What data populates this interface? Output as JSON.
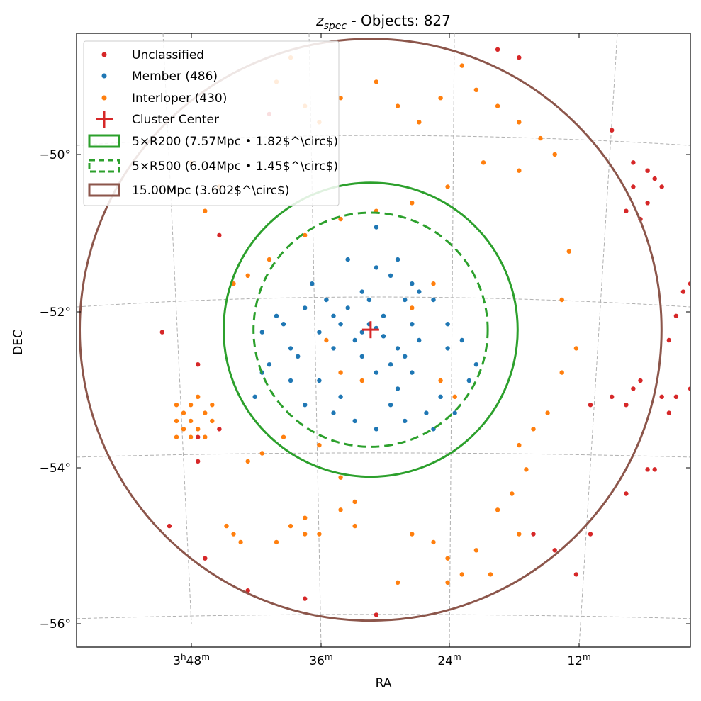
{
  "title": {
    "main": "z",
    "sub": "spec",
    "rest": " - Objects: 827"
  },
  "xlabel": "RA",
  "ylabel": "DEC",
  "colors": {
    "unclassified": "#d62728",
    "member": "#1f77b4",
    "interloper": "#ff7f0e",
    "center": "#d62728",
    "r200": "#2ca02c",
    "r500": "#2ca02c",
    "r15": "#8c564b",
    "grid": "#b0b0b0"
  },
  "legend": [
    {
      "key": "unclassified",
      "label": "Unclassified",
      "marker": "dot"
    },
    {
      "key": "member",
      "label": "Member (486)",
      "marker": "dot"
    },
    {
      "key": "interloper",
      "label": "Interloper (430)",
      "marker": "dot"
    },
    {
      "key": "center",
      "label": "Cluster Center",
      "marker": "plus"
    },
    {
      "key": "r200",
      "label": "5×R200 (7.57Mpc • 1.82$^\\circ$)",
      "marker": "solid-rect"
    },
    {
      "key": "r500",
      "label": "5×R500 (6.04Mpc • 1.45$^\\circ$)",
      "marker": "dashed-rect"
    },
    {
      "key": "r15",
      "label": "15.00Mpc (3.602$^\\circ$)",
      "marker": "solid-rect"
    }
  ],
  "y_ticks": [
    "−50°",
    "−52°",
    "−54°",
    "−56°"
  ],
  "x_ticks": [
    {
      "main": "3",
      "sup1": "h",
      "mid": "48",
      "sup2": "m"
    },
    {
      "main": "36",
      "sup1": "m"
    },
    {
      "main": "24",
      "sup1": "m"
    },
    {
      "main": "12",
      "sup1": "m"
    }
  ],
  "chart_data": {
    "type": "scatter",
    "title": "z_spec - Objects: 827",
    "xlabel": "RA",
    "ylabel": "DEC",
    "xlim_hours": [
      3.92,
      3.06
    ],
    "ylim_deg": [
      -56.3,
      -48.7
    ],
    "grid": true,
    "legend_position": "top-left",
    "center": {
      "ra_h": 3.508,
      "dec": -52.37
    },
    "circles": [
      {
        "name": "5×R200",
        "radius_deg": 1.82,
        "style": "solid"
      },
      {
        "name": "5×R500",
        "radius_deg": 1.45,
        "style": "dashed"
      },
      {
        "name": "15.00Mpc",
        "radius_deg": 3.602,
        "style": "solid"
      }
    ],
    "series": [
      {
        "name": "Unclassified",
        "color": "#d62728",
        "points": [
          [
            3.65,
            -49.7
          ],
          [
            3.72,
            -51.2
          ],
          [
            3.8,
            -52.4
          ],
          [
            3.75,
            -52.8
          ],
          [
            3.75,
            -53.7
          ],
          [
            3.75,
            -54.0
          ],
          [
            3.79,
            -54.8
          ],
          [
            3.74,
            -55.2
          ],
          [
            3.68,
            -55.6
          ],
          [
            3.6,
            -55.7
          ],
          [
            3.5,
            -55.9
          ],
          [
            3.33,
            -48.9
          ],
          [
            3.3,
            -49.0
          ],
          [
            3.17,
            -49.9
          ],
          [
            3.14,
            -50.6
          ],
          [
            3.14,
            -50.3
          ],
          [
            3.12,
            -50.4
          ],
          [
            3.11,
            -50.5
          ],
          [
            3.1,
            -50.6
          ],
          [
            3.12,
            -50.8
          ],
          [
            3.13,
            -51.0
          ],
          [
            3.15,
            -50.9
          ],
          [
            3.06,
            -51.8
          ],
          [
            3.07,
            -51.9
          ],
          [
            3.08,
            -52.2
          ],
          [
            3.09,
            -52.5
          ],
          [
            3.13,
            -53.0
          ],
          [
            3.14,
            -53.1
          ],
          [
            3.15,
            -53.3
          ],
          [
            3.17,
            -53.2
          ],
          [
            3.2,
            -53.3
          ],
          [
            3.1,
            -53.2
          ],
          [
            3.09,
            -53.4
          ],
          [
            3.08,
            -53.2
          ],
          [
            3.06,
            -53.1
          ],
          [
            3.12,
            -54.1
          ],
          [
            3.15,
            -54.4
          ],
          [
            3.11,
            -54.1
          ],
          [
            3.2,
            -54.9
          ],
          [
            3.22,
            -55.4
          ],
          [
            3.25,
            -55.1
          ],
          [
            3.28,
            -54.9
          ],
          [
            3.72,
            -53.6
          ]
        ]
      },
      {
        "name": "Member (486)",
        "color": "#1f77b4",
        "points": [
          [
            3.51,
            -52.3
          ],
          [
            3.52,
            -52.4
          ],
          [
            3.5,
            -52.35
          ],
          [
            3.49,
            -52.45
          ],
          [
            3.53,
            -52.5
          ],
          [
            3.55,
            -52.3
          ],
          [
            3.47,
            -52.6
          ],
          [
            3.46,
            -52.7
          ],
          [
            3.48,
            -52.8
          ],
          [
            3.45,
            -52.9
          ],
          [
            3.44,
            -52.5
          ],
          [
            3.56,
            -52.2
          ],
          [
            3.58,
            -52.4
          ],
          [
            3.6,
            -52.1
          ],
          [
            3.62,
            -52.6
          ],
          [
            3.57,
            -52.0
          ],
          [
            3.52,
            -51.9
          ],
          [
            3.5,
            -51.6
          ],
          [
            3.48,
            -51.7
          ],
          [
            3.45,
            -51.8
          ],
          [
            3.42,
            -52.0
          ],
          [
            3.4,
            -52.3
          ],
          [
            3.38,
            -52.5
          ],
          [
            3.36,
            -52.8
          ],
          [
            3.41,
            -53.2
          ],
          [
            3.43,
            -53.4
          ],
          [
            3.46,
            -53.5
          ],
          [
            3.48,
            -53.3
          ],
          [
            3.5,
            -53.6
          ],
          [
            3.53,
            -53.5
          ],
          [
            3.56,
            -53.4
          ],
          [
            3.6,
            -53.3
          ],
          [
            3.62,
            -53.0
          ],
          [
            3.65,
            -52.8
          ],
          [
            3.66,
            -52.4
          ],
          [
            3.64,
            -52.2
          ],
          [
            3.59,
            -51.8
          ],
          [
            3.54,
            -51.5
          ],
          [
            3.5,
            -51.1
          ],
          [
            3.47,
            -51.5
          ],
          [
            3.44,
            -51.9
          ],
          [
            3.4,
            -52.6
          ],
          [
            3.37,
            -53.0
          ],
          [
            3.39,
            -53.4
          ],
          [
            3.42,
            -53.6
          ],
          [
            3.55,
            -53.2
          ],
          [
            3.58,
            -53.0
          ],
          [
            3.61,
            -52.7
          ],
          [
            3.63,
            -52.3
          ],
          [
            3.66,
            -52.9
          ],
          [
            3.67,
            -53.2
          ],
          [
            3.52,
            -52.7
          ],
          [
            3.5,
            -52.9
          ],
          [
            3.47,
            -53.1
          ],
          [
            3.45,
            -52.3
          ],
          [
            3.54,
            -52.1
          ],
          [
            3.56,
            -52.6
          ],
          [
            3.49,
            -52.2
          ],
          [
            3.51,
            -52.0
          ],
          [
            3.46,
            -52.0
          ]
        ]
      },
      {
        "name": "Interloper (430)",
        "color": "#ff7f0e",
        "points": [
          [
            3.78,
            -53.3
          ],
          [
            3.77,
            -53.4
          ],
          [
            3.76,
            -53.5
          ],
          [
            3.75,
            -53.6
          ],
          [
            3.77,
            -53.6
          ],
          [
            3.74,
            -53.4
          ],
          [
            3.78,
            -53.5
          ],
          [
            3.76,
            -53.7
          ],
          [
            3.74,
            -53.7
          ],
          [
            3.73,
            -53.5
          ],
          [
            3.73,
            -53.3
          ],
          [
            3.75,
            -53.2
          ],
          [
            3.78,
            -53.7
          ],
          [
            3.76,
            -53.3
          ],
          [
            3.6,
            -54.7
          ],
          [
            3.62,
            -54.8
          ],
          [
            3.58,
            -54.9
          ],
          [
            3.64,
            -55.0
          ],
          [
            3.6,
            -54.9
          ],
          [
            3.7,
            -54.9
          ],
          [
            3.69,
            -55.0
          ],
          [
            3.71,
            -54.8
          ],
          [
            3.55,
            -54.6
          ],
          [
            3.53,
            -54.8
          ],
          [
            3.45,
            -54.9
          ],
          [
            3.42,
            -55.0
          ],
          [
            3.4,
            -55.2
          ],
          [
            3.38,
            -55.4
          ],
          [
            3.4,
            -55.5
          ],
          [
            3.47,
            -55.5
          ],
          [
            3.53,
            -54.5
          ],
          [
            3.55,
            -54.2
          ],
          [
            3.58,
            -53.8
          ],
          [
            3.63,
            -53.7
          ],
          [
            3.66,
            -53.9
          ],
          [
            3.68,
            -54.0
          ],
          [
            3.62,
            -49.0
          ],
          [
            3.64,
            -49.3
          ],
          [
            3.6,
            -49.6
          ],
          [
            3.58,
            -49.8
          ],
          [
            3.55,
            -49.5
          ],
          [
            3.5,
            -49.3
          ],
          [
            3.47,
            -49.6
          ],
          [
            3.44,
            -49.8
          ],
          [
            3.41,
            -49.5
          ],
          [
            3.38,
            -49.1
          ],
          [
            3.36,
            -49.4
          ],
          [
            3.33,
            -49.6
          ],
          [
            3.3,
            -49.8
          ],
          [
            3.27,
            -50.0
          ],
          [
            3.25,
            -50.2
          ],
          [
            3.3,
            -50.4
          ],
          [
            3.35,
            -50.3
          ],
          [
            3.4,
            -50.6
          ],
          [
            3.45,
            -50.8
          ],
          [
            3.5,
            -50.9
          ],
          [
            3.55,
            -51.0
          ],
          [
            3.6,
            -51.2
          ],
          [
            3.65,
            -51.5
          ],
          [
            3.68,
            -51.7
          ],
          [
            3.7,
            -51.8
          ],
          [
            3.72,
            -50.6
          ],
          [
            3.74,
            -50.9
          ],
          [
            3.76,
            -50.3
          ],
          [
            3.23,
            -51.4
          ],
          [
            3.24,
            -52.0
          ],
          [
            3.22,
            -52.6
          ],
          [
            3.24,
            -52.9
          ],
          [
            3.26,
            -53.4
          ],
          [
            3.28,
            -53.6
          ],
          [
            3.3,
            -53.8
          ],
          [
            3.29,
            -54.1
          ],
          [
            3.31,
            -54.4
          ],
          [
            3.33,
            -54.6
          ],
          [
            3.3,
            -54.9
          ],
          [
            3.36,
            -55.1
          ],
          [
            3.34,
            -55.4
          ],
          [
            3.39,
            -53.2
          ],
          [
            3.41,
            -53.0
          ],
          [
            3.52,
            -53.0
          ],
          [
            3.55,
            -52.9
          ],
          [
            3.57,
            -52.5
          ],
          [
            3.45,
            -52.1
          ],
          [
            3.42,
            -51.8
          ]
        ]
      }
    ]
  }
}
